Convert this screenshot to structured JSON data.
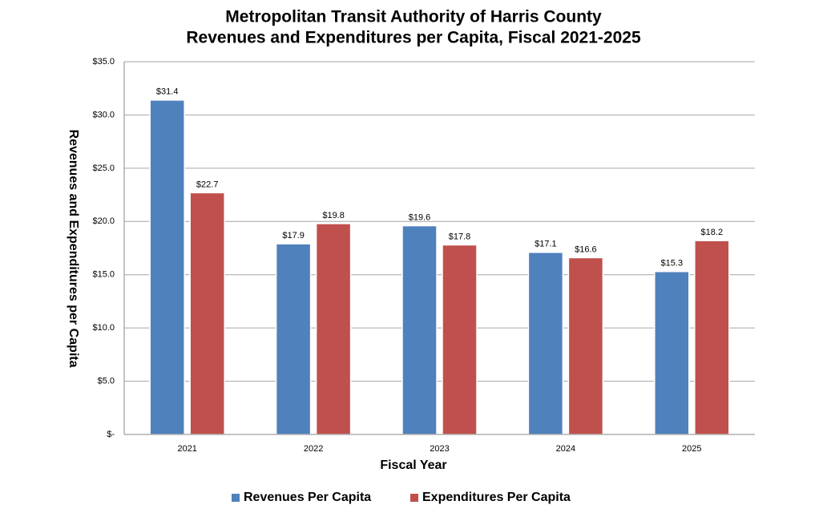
{
  "chart_data": {
    "type": "bar",
    "title": "Metropolitan Transit Authority of Harris County",
    "subtitle": "Revenues and Expenditures per Capita, Fiscal 2021-2025",
    "x_label": "Fiscal Year",
    "y_label": "Revenues and Expenditures per Capita",
    "categories": [
      "2021",
      "2022",
      "2023",
      "2024",
      "2025"
    ],
    "series": [
      {
        "name": "Revenues Per Capita",
        "color": "#4f81bd",
        "values": [
          31.4,
          17.9,
          19.6,
          17.1,
          15.3
        ],
        "value_labels": [
          "$31.4",
          "$17.9",
          "$19.6",
          "$17.1",
          "$15.3"
        ]
      },
      {
        "name": "Expenditures Per Capita",
        "color": "#c0504d",
        "values": [
          22.7,
          19.8,
          17.8,
          16.6,
          18.2
        ],
        "value_labels": [
          "$22.7",
          "$19.8",
          "$17.8",
          "$16.6",
          "$18.2"
        ]
      }
    ],
    "ylim": [
      0,
      35
    ],
    "yticks": [
      {
        "value": 0,
        "label": "$-"
      },
      {
        "value": 5,
        "label": "$5.0"
      },
      {
        "value": 10,
        "label": "$10.0"
      },
      {
        "value": 15,
        "label": "$15.0"
      },
      {
        "value": 20,
        "label": "$20.0"
      },
      {
        "value": 25,
        "label": "$25.0"
      },
      {
        "value": 30,
        "label": "$30.0"
      },
      {
        "value": 35,
        "label": "$35.0"
      }
    ],
    "grid": true,
    "legend": "bottom"
  }
}
